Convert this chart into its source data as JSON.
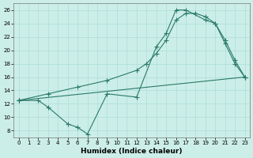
{
  "xlabel": "Humidex (Indice chaleur)",
  "bg_color": "#cceee8",
  "grid_color": "#aaddda",
  "line_color": "#2a7a6a",
  "xlim": [
    -0.5,
    23.5
  ],
  "ylim": [
    7.0,
    27.0
  ],
  "yticks": [
    8,
    10,
    12,
    14,
    16,
    18,
    20,
    22,
    24,
    26
  ],
  "xticks": [
    0,
    1,
    2,
    3,
    4,
    5,
    6,
    7,
    8,
    9,
    10,
    11,
    12,
    13,
    14,
    15,
    16,
    17,
    18,
    19,
    20,
    21,
    22,
    23
  ],
  "line1_x": [
    0,
    2,
    3,
    5,
    6,
    7,
    9,
    12,
    14,
    15,
    16,
    17,
    19,
    20,
    21,
    22,
    23
  ],
  "line1_y": [
    12.5,
    12.5,
    11.5,
    9.0,
    8.5,
    7.5,
    13.5,
    13.0,
    20.5,
    22.5,
    26.0,
    26.0,
    24.5,
    24.0,
    21.0,
    18.0,
    16.0
  ],
  "line2_x": [
    0,
    23
  ],
  "line2_y": [
    12.5,
    16.0
  ],
  "line3_x": [
    0,
    3,
    6,
    9,
    12,
    13,
    14,
    15,
    16,
    17,
    18,
    19,
    20,
    21,
    22,
    23
  ],
  "line3_y": [
    12.5,
    13.5,
    14.5,
    15.5,
    17.0,
    18.0,
    19.5,
    21.5,
    24.5,
    25.5,
    25.5,
    25.0,
    24.0,
    21.5,
    18.5,
    16.0
  ],
  "xlabel_fontsize": 6.5,
  "tick_fontsize": 5.0
}
